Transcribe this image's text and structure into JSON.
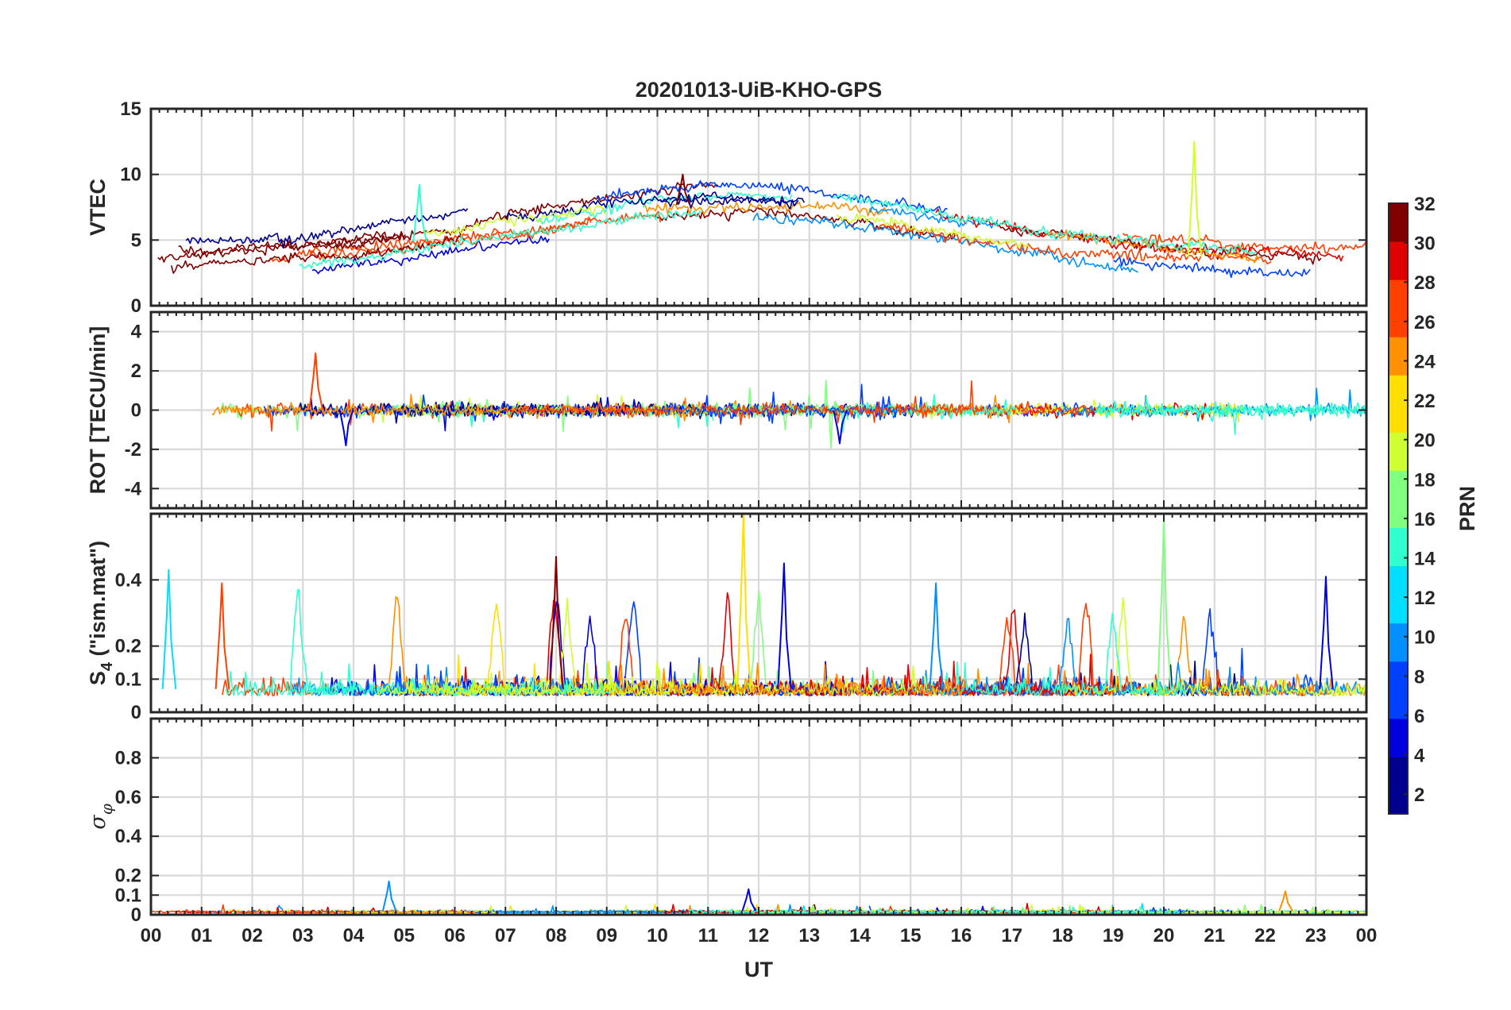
{
  "chart_data": {
    "type": "line",
    "title": "20201013-UiB-KHO-GPS",
    "xlabel": "UT",
    "x_ticks": [
      "00",
      "01",
      "02",
      "03",
      "04",
      "05",
      "06",
      "07",
      "08",
      "09",
      "10",
      "11",
      "12",
      "13",
      "14",
      "15",
      "16",
      "17",
      "18",
      "19",
      "20",
      "21",
      "22",
      "23",
      "00"
    ],
    "xlim_hours": [
      0,
      24
    ],
    "grid": true,
    "panels": [
      {
        "id": "vtec",
        "ylabel": "VTEC",
        "ylim": [
          0,
          15
        ],
        "yticks": [
          0,
          5,
          10,
          15
        ],
        "ytick_labels": [
          "0",
          "5",
          "10",
          "15"
        ],
        "trend": "diurnal variation mostly between 2 and 9 TECU, peaking near 8-10 TECU around 11 UT; isolated spike to about 12.5 TECU near 20.6 UT"
      },
      {
        "id": "rot",
        "ylabel": "ROT [TECU/min]",
        "ylim": [
          -5,
          5
        ],
        "yticks": [
          -4,
          -2,
          0,
          2,
          4
        ],
        "ytick_labels": [
          "-4",
          "-2",
          "0",
          "2",
          "4"
        ],
        "trend": "fluctuations around 0, mostly within +/-1 TECU/min; largest excursions about +2.9 near 03 UT and -1.8 near 04 UT"
      },
      {
        "id": "s4",
        "ylabel": "S4 (\"ism.mat\")",
        "ylabel_base": "S",
        "ylabel_sub": "4",
        "ylabel_rest": " (\"ism.mat\")",
        "ylim": [
          0,
          0.6
        ],
        "yticks": [
          0,
          0.1,
          0.2,
          0.4
        ],
        "ytick_labels": [
          "0",
          "0.1",
          "0.2",
          "0.4"
        ],
        "trend": "background 0.04-0.12 with spikes: about 0.47 at 08 UT, 0.60 near 11.7 UT, 0.58 near 20 UT, 0.45 near 12.5 UT, 0.41 near 23.2 UT"
      },
      {
        "id": "sigma_phi",
        "ylabel": "σφ",
        "ylabel_base": "σ",
        "ylabel_sub": "φ",
        "ylim": [
          0,
          1
        ],
        "yticks": [
          0,
          0.1,
          0.2,
          0.4,
          0.6,
          0.8
        ],
        "ytick_labels": [
          "0",
          "0.1",
          "0.2",
          "0.4",
          "0.6",
          "0.8"
        ],
        "trend": "mostly below 0.05; small peaks about 0.17 at 4.7 UT, 0.13 at 11.8 UT, 0.12 at 22.4 UT"
      }
    ],
    "colorbar": {
      "label": "PRN",
      "range": [
        1,
        32
      ],
      "ticks": [
        2,
        4,
        6,
        8,
        10,
        12,
        14,
        16,
        18,
        20,
        22,
        24,
        26,
        28,
        30,
        32
      ],
      "tick_labels": [
        "2",
        "4",
        "6",
        "8",
        "10",
        "12",
        "14",
        "16",
        "18",
        "20",
        "22",
        "24",
        "26",
        "28",
        "30",
        "32"
      ],
      "colormap": "jet",
      "colors": [
        "#00008f",
        "#0000df",
        "#0040ff",
        "#0090ff",
        "#00dfff",
        "#30ffcf",
        "#80ff80",
        "#cfff30",
        "#ffdf00",
        "#ff9000",
        "#ff4000",
        "#df0000",
        "#800000"
      ]
    }
  }
}
